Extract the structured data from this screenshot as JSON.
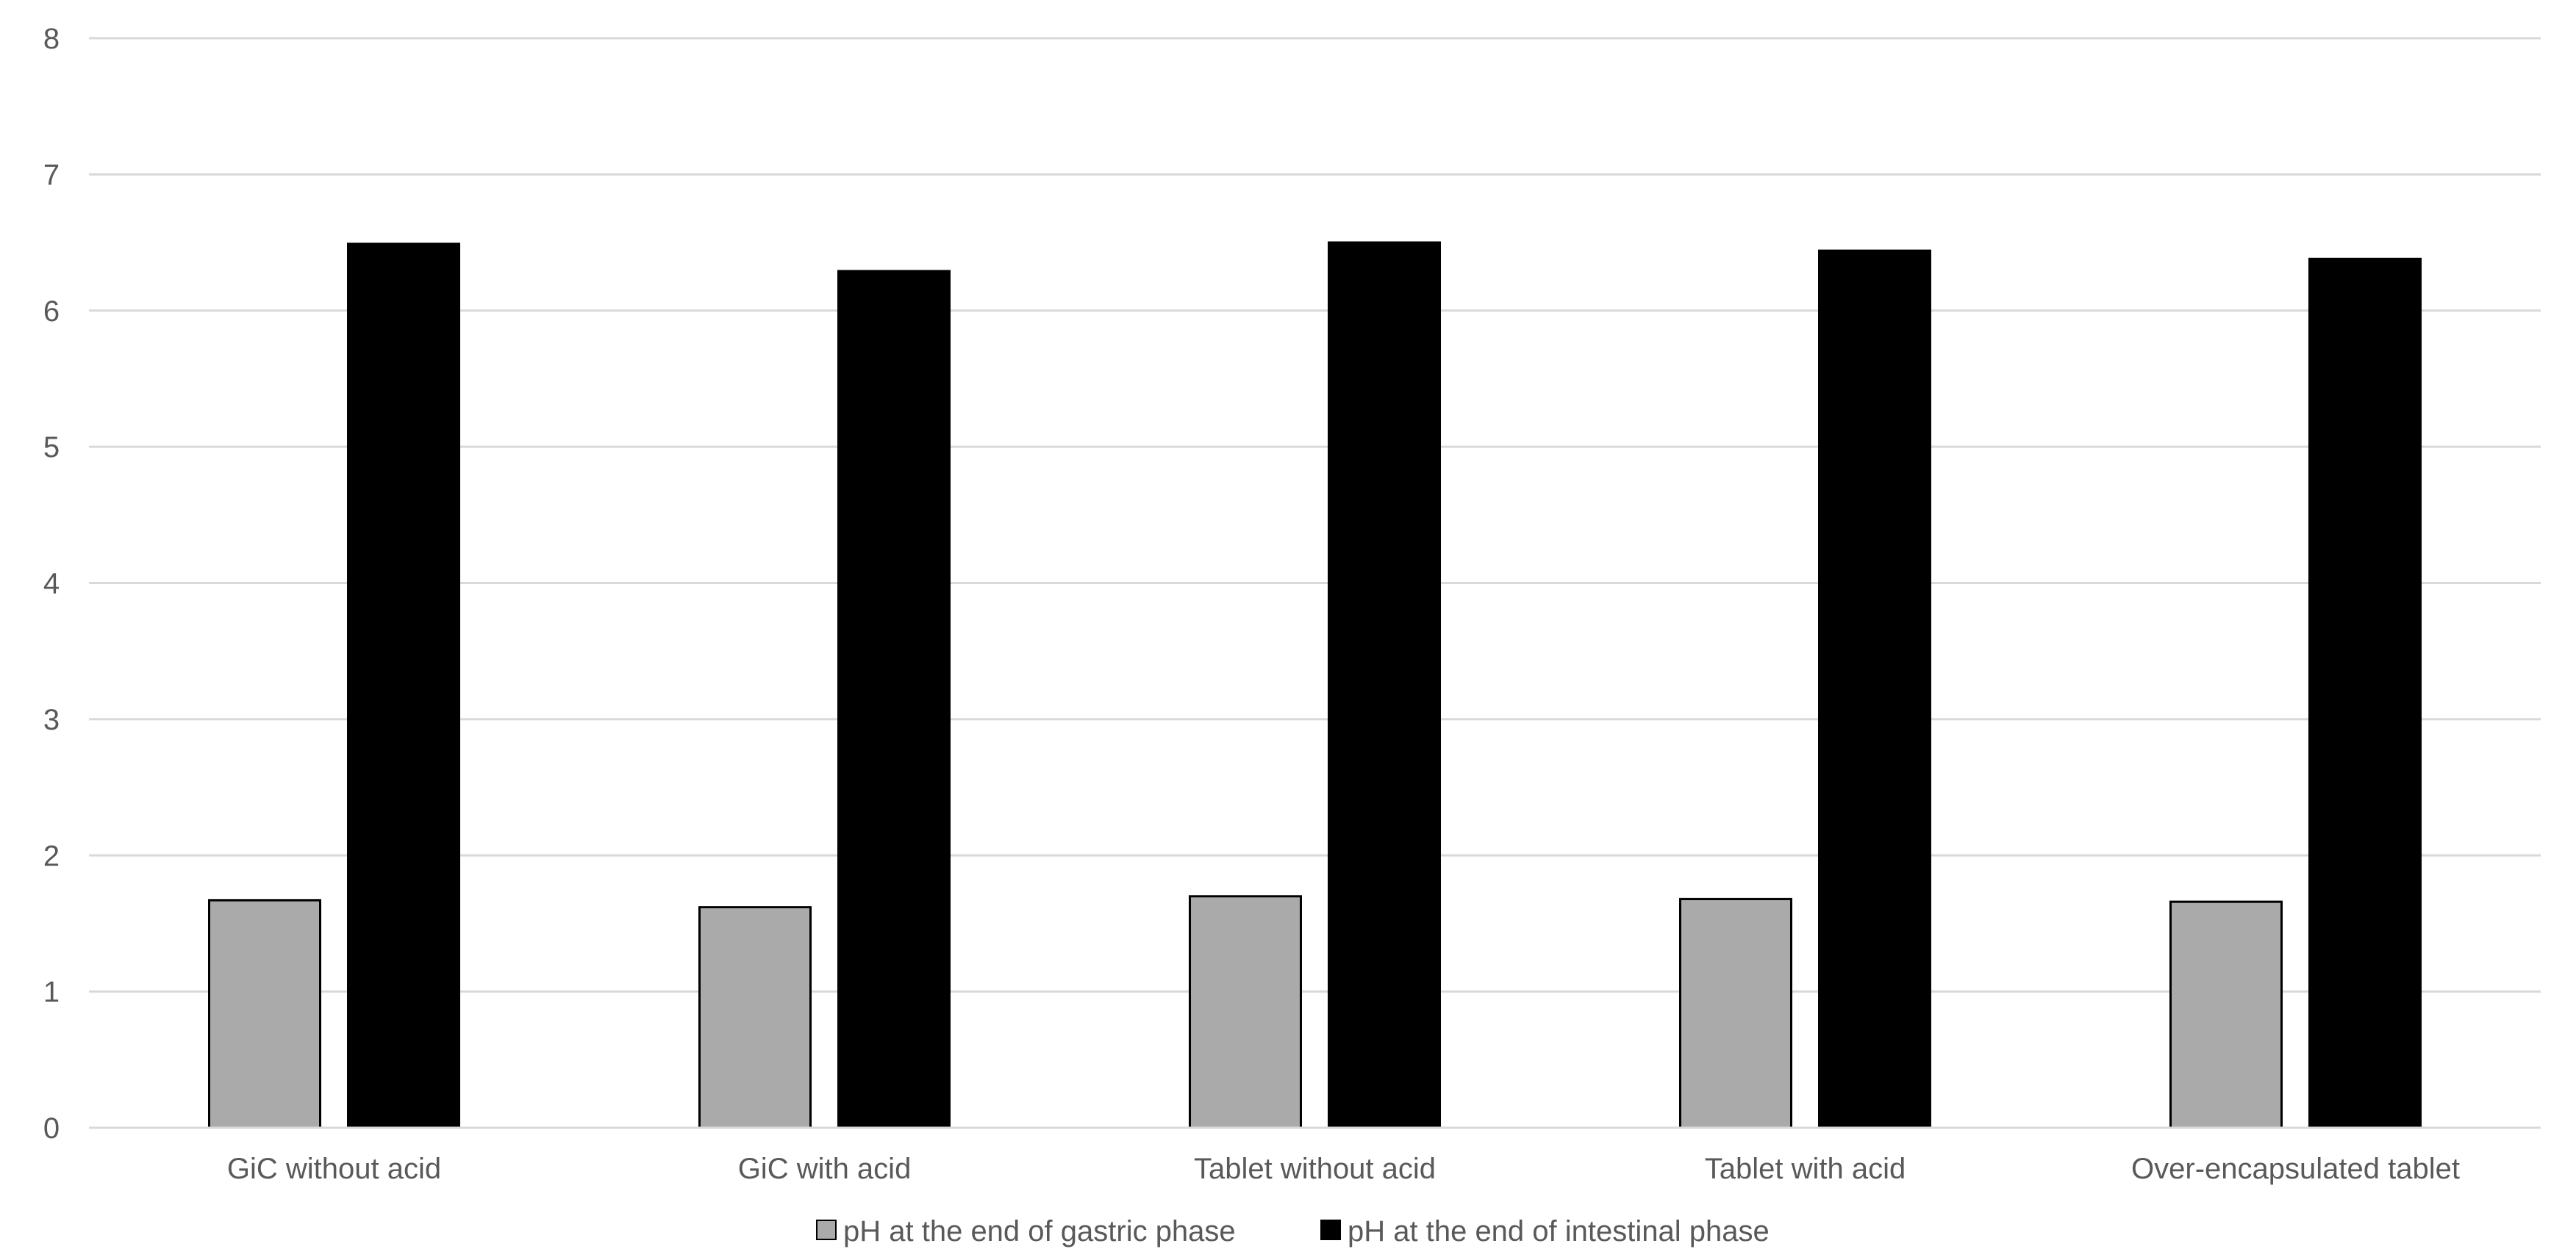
{
  "chart_data": {
    "type": "bar",
    "title": "",
    "xlabel": "",
    "ylabel": "",
    "ylim": [
      0,
      8
    ],
    "yticks": [
      "0",
      "1",
      "2",
      "3",
      "4",
      "5",
      "6",
      "7",
      "8"
    ],
    "grid": true,
    "legend_position": "bottom",
    "categories": [
      "GiC without acid",
      "GiC with acid",
      "Tablet without acid",
      "Tablet with acid",
      "Over-encapsulated tablet"
    ],
    "series": [
      {
        "name": "pH at the end of gastric phase",
        "color": "#aaaaaa",
        "values": [
          1.67,
          1.62,
          1.7,
          1.68,
          1.66
        ]
      },
      {
        "name": "pH at the end of intestinal phase",
        "color": "#000000",
        "values": [
          6.49,
          6.29,
          6.5,
          6.44,
          6.38
        ]
      }
    ]
  }
}
